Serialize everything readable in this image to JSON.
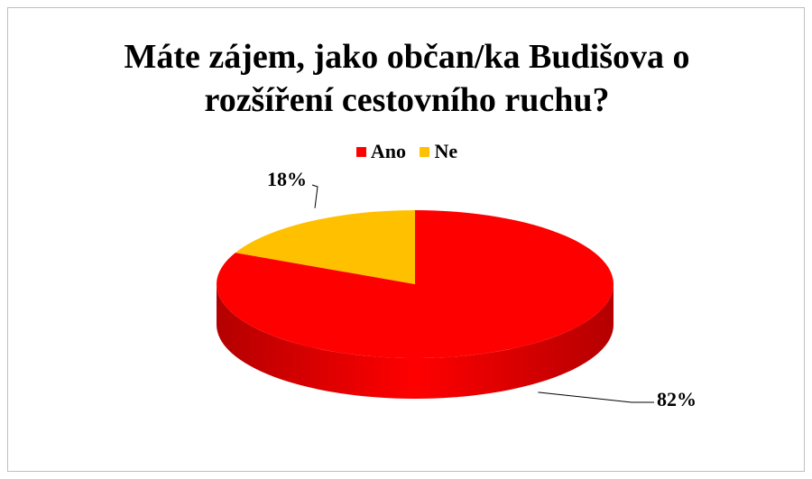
{
  "chart_data": {
    "type": "pie",
    "title": "Máte zájem, jako občan/ka Budišova o rozšíření cestovního ruchu?",
    "title_lines": [
      "Máte zájem, jako občan/ka Budišova o",
      "rozšíření cestovního ruchu?"
    ],
    "categories": [
      "Ano",
      "Ne"
    ],
    "values": [
      82,
      18
    ],
    "data_labels": [
      "82%",
      "18%"
    ],
    "colors": [
      "#ff0000",
      "#ffc000"
    ],
    "legend_position": "top",
    "style": "3d"
  }
}
